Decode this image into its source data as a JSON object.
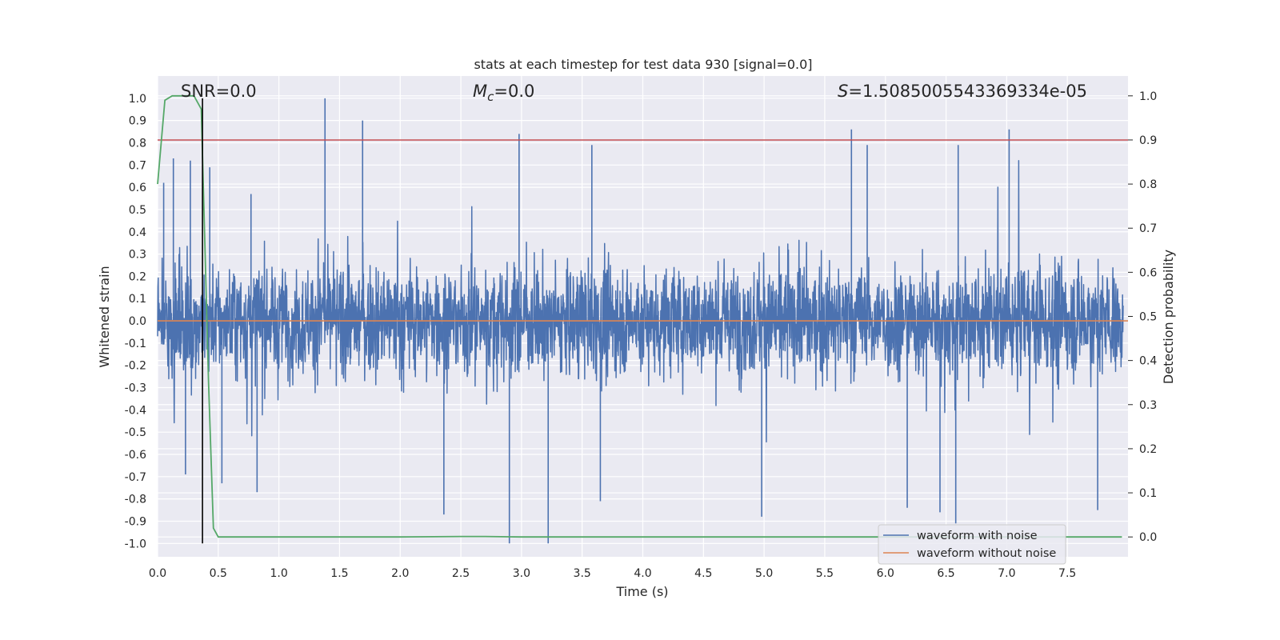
{
  "chart_data": {
    "type": "line",
    "title": "stats at each timestep for test data 930 [signal=0.0]",
    "xlabel": "Time (s)",
    "ylabel": "Whitened strain",
    "y2label": "Detection probability",
    "xlim": [
      0.0,
      8.0
    ],
    "ylim": [
      -1.06,
      1.1
    ],
    "y2lim": [
      -0.045,
      1.045
    ],
    "xticks": [
      "0.0",
      "0.5",
      "1.0",
      "1.5",
      "2.0",
      "2.5",
      "3.0",
      "3.5",
      "4.0",
      "4.5",
      "5.0",
      "5.5",
      "6.0",
      "6.5",
      "7.0",
      "7.5"
    ],
    "yticks": [
      "1.0",
      "0.9",
      "0.8",
      "0.7",
      "0.6",
      "0.5",
      "0.4",
      "0.3",
      "0.2",
      "0.1",
      "0.0",
      "-0.1",
      "-0.2",
      "-0.3",
      "-0.4",
      "-0.5",
      "-0.6",
      "-0.7",
      "-0.8",
      "-0.9",
      "-1.0"
    ],
    "y2ticks": [
      "1.0",
      "0.9",
      "0.8",
      "0.7",
      "0.6",
      "0.5",
      "0.4",
      "0.3",
      "0.2",
      "0.1",
      "0.0"
    ],
    "grid": true,
    "legend_position": "bottom-right",
    "annotations": {
      "snr": "SNR=0.0",
      "mc_symbol": "M",
      "mc_sub": "c",
      "mc_value": "=0.0",
      "s_symbol": "S",
      "s_value": "=1.5085005543369334e-05"
    },
    "series": [
      {
        "name": "waveform with noise",
        "color": "#4c72b0",
        "axis": "left",
        "description_values": "dense whitened-strain noise, mostly within [-0.4, 0.4]",
        "peaks": [
          {
            "x": 0.05,
            "y": 0.62
          },
          {
            "x": 0.13,
            "y": 0.73
          },
          {
            "x": 0.27,
            "y": 0.72
          },
          {
            "x": 0.43,
            "y": 0.69
          },
          {
            "x": 0.77,
            "y": 0.57
          },
          {
            "x": 1.38,
            "y": 1.0
          },
          {
            "x": 1.69,
            "y": 0.9
          },
          {
            "x": 2.98,
            "y": 0.84
          },
          {
            "x": 3.58,
            "y": 0.79
          },
          {
            "x": 5.72,
            "y": 0.86
          },
          {
            "x": 5.85,
            "y": 0.79
          },
          {
            "x": 6.6,
            "y": 0.79
          },
          {
            "x": 7.02,
            "y": 0.86
          }
        ],
        "troughs": [
          {
            "x": 0.23,
            "y": -0.69
          },
          {
            "x": 0.53,
            "y": -0.73
          },
          {
            "x": 0.82,
            "y": -0.77
          },
          {
            "x": 2.36,
            "y": -0.87
          },
          {
            "x": 2.9,
            "y": -1.0
          },
          {
            "x": 3.22,
            "y": -1.0
          },
          {
            "x": 3.65,
            "y": -0.81
          },
          {
            "x": 4.98,
            "y": -0.88
          },
          {
            "x": 6.18,
            "y": -0.84
          },
          {
            "x": 6.45,
            "y": -0.86
          },
          {
            "x": 6.58,
            "y": -0.91
          },
          {
            "x": 7.75,
            "y": -0.85
          }
        ]
      },
      {
        "name": "waveform without noise",
        "color": "#dd8452",
        "axis": "left",
        "x": [
          0.0,
          8.0
        ],
        "y": [
          0.0,
          0.0
        ]
      },
      {
        "name": "detection probability",
        "color": "#55a868",
        "axis": "right",
        "x": [
          0.0,
          0.06,
          0.12,
          0.18,
          0.24,
          0.3,
          0.36,
          0.42,
          0.46,
          0.5,
          1.0,
          2.0,
          2.5,
          2.7,
          3.0,
          4.0,
          5.0,
          6.0,
          7.0,
          7.95
        ],
        "y": [
          0.8,
          0.99,
          1.0,
          1.0,
          1.0,
          1.0,
          0.97,
          0.35,
          0.02,
          0.0,
          0.0,
          0.0,
          0.001,
          0.001,
          0.0,
          0.0,
          0.0,
          0.0,
          0.0,
          0.0
        ]
      }
    ],
    "hlines": [
      {
        "axis": "right",
        "y": 0.9,
        "color": "#c44e52"
      }
    ],
    "vlines": [
      {
        "x": 0.37,
        "y_from": -1.0,
        "y_to": 1.0,
        "color": "#000000"
      }
    ]
  }
}
